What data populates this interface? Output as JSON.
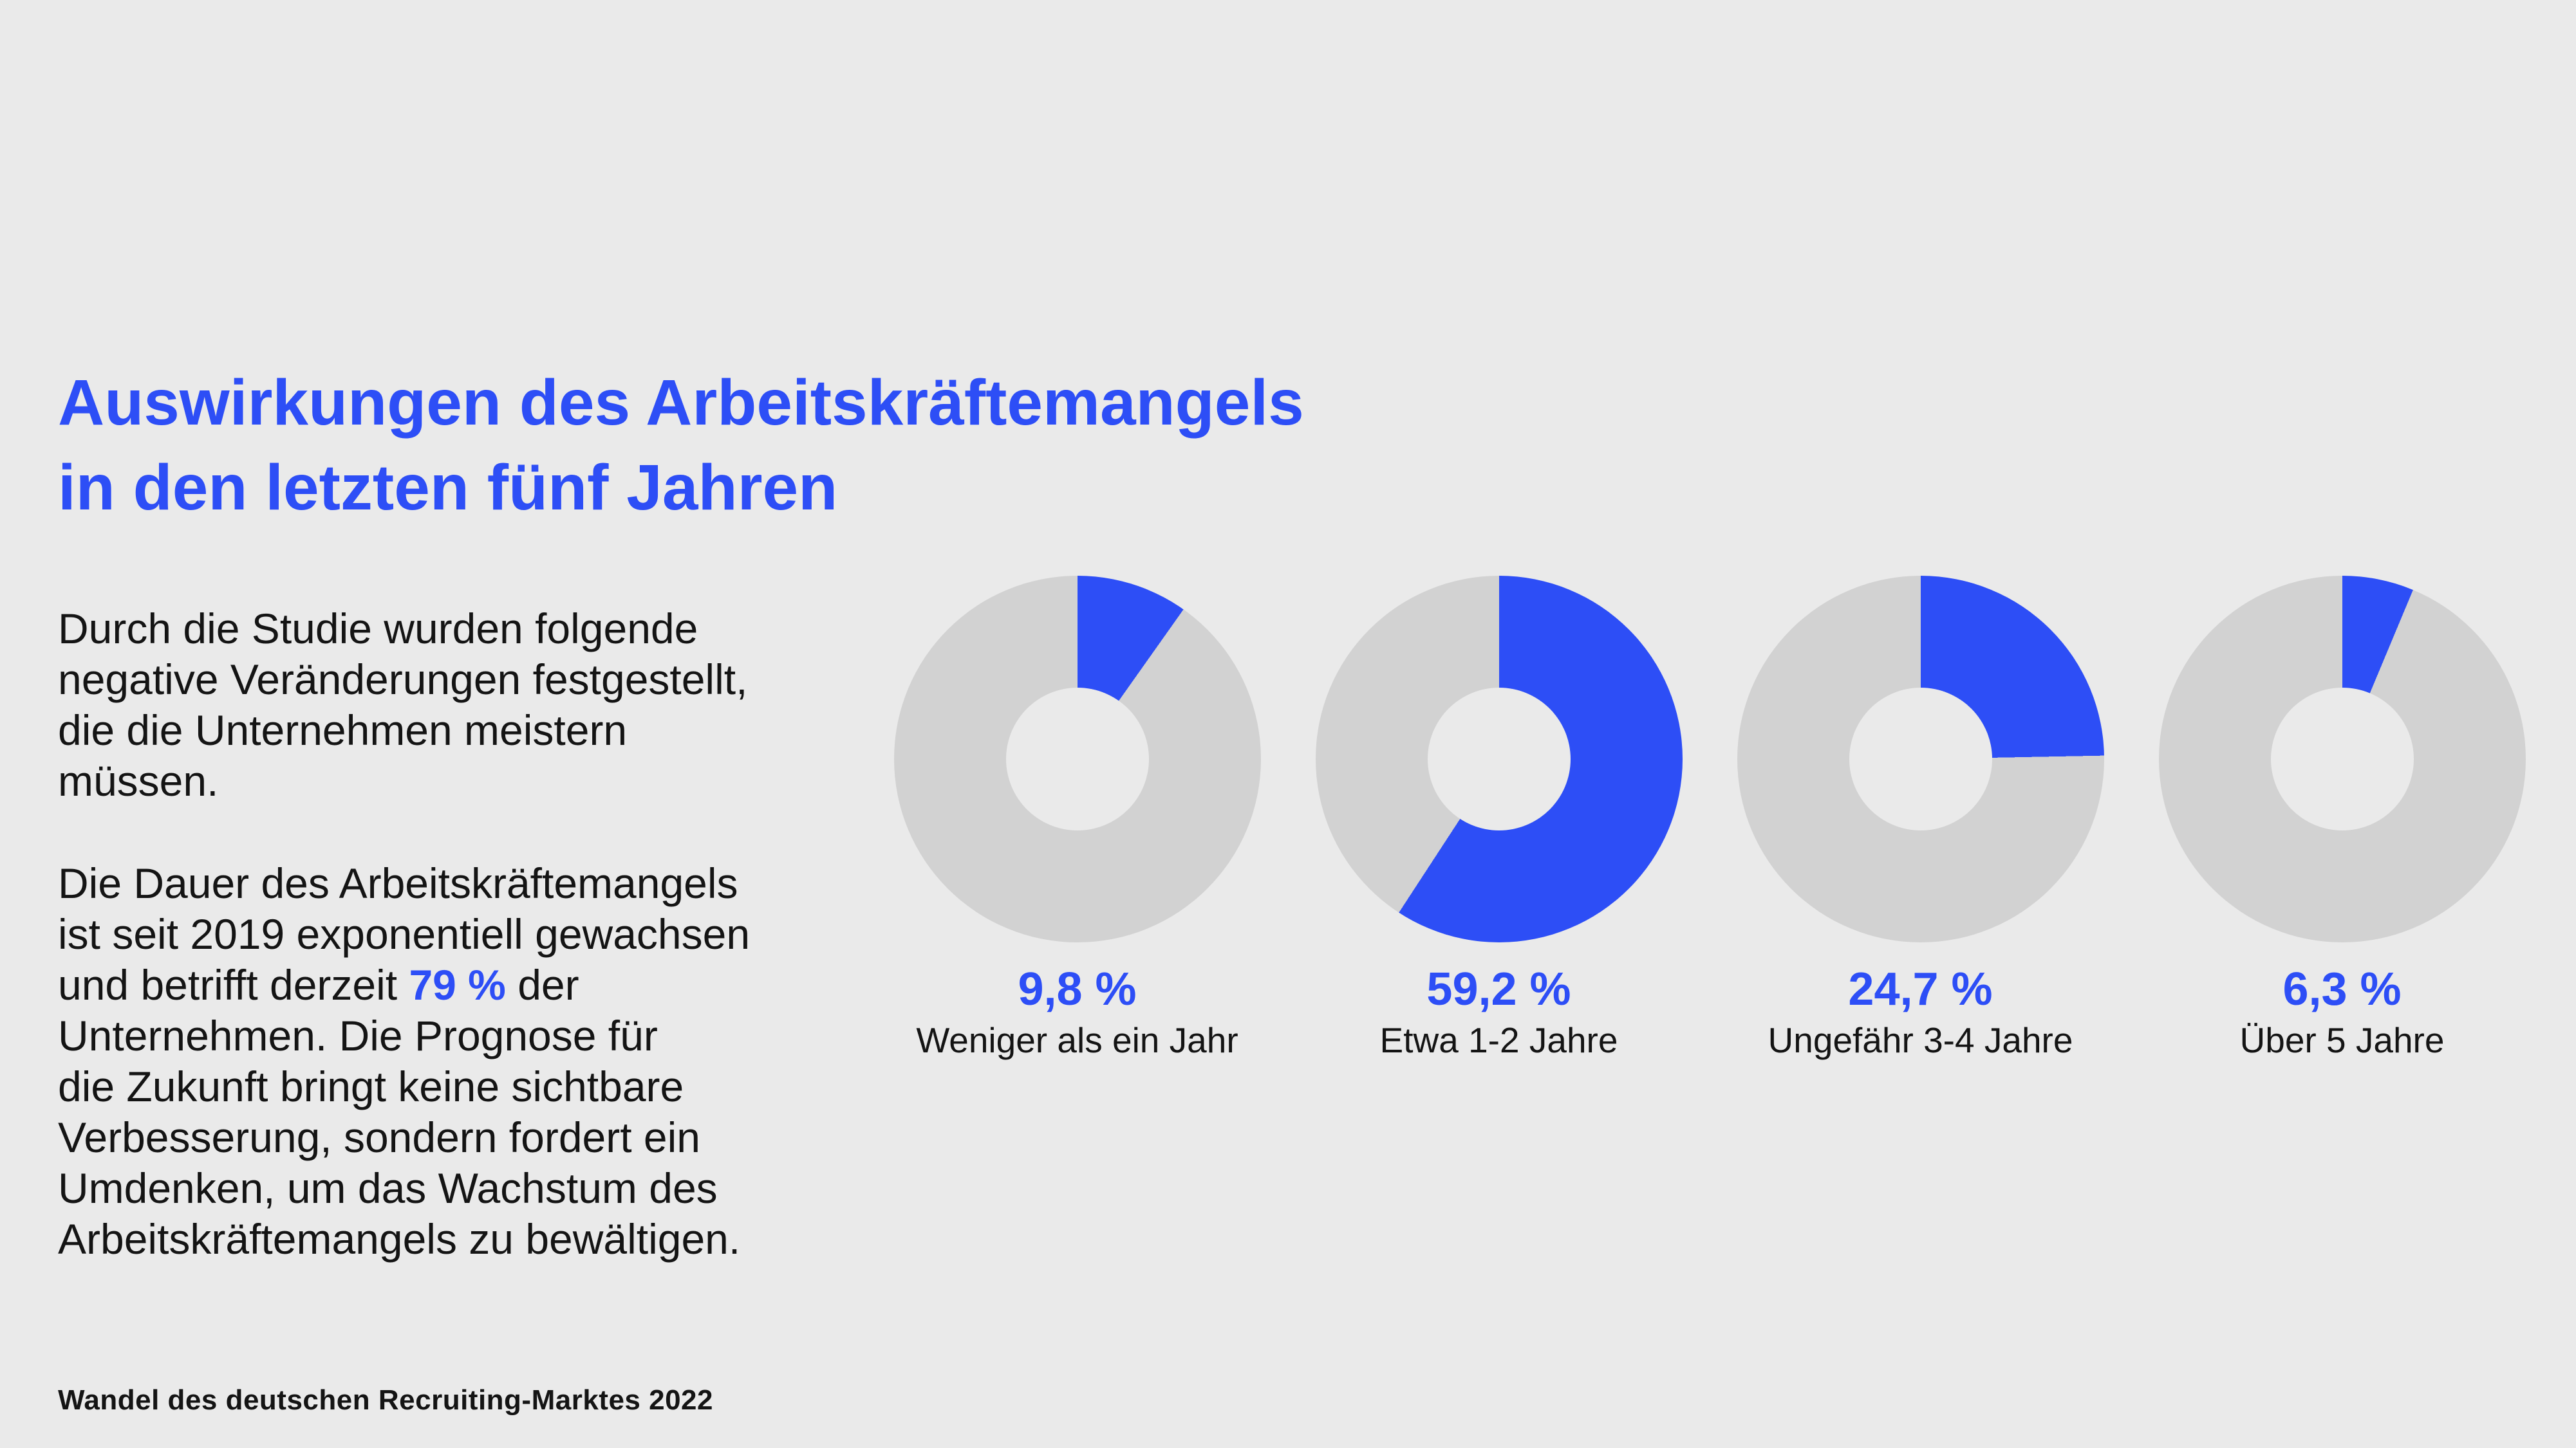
{
  "page": {
    "background_color": "#eaeaea",
    "accent_color": "#2d4ef6",
    "ring_rest_color": "#d2d2d2",
    "text_color": "#141414"
  },
  "header": {
    "title": "Auswirkungen des Arbeitskräftemangels\nin den letzten fünf Jahren"
  },
  "body": {
    "paragraph1": "Durch die Studie wurden folgende\nnegative Veränderungen festgestellt,\ndie die Unternehmen meistern\nmüssen.",
    "paragraph2_before": "Die Dauer des Arbeitskräftemangels\nist seit 2019 exponentiell gewachsen\nund betrifft derzeit ",
    "paragraph2_highlight": "79 %",
    "paragraph2_after": " der\nUnternehmen. Die Prognose für\ndie Zukunft bringt keine sichtbare\nVerbesserung, sondern fordert ein\nUmdenken, um das Wachstum des\nArbeitskräftemangels zu bewältigen."
  },
  "footer": {
    "source": "Wandel des deutschen Recruiting-Marktes 2022"
  },
  "chart_data": {
    "type": "pie",
    "variant": "donut",
    "title": "Auswirkungen des Arbeitskräftemangels in den letzten fünf Jahren",
    "categories": [
      "Weniger als ein Jahr",
      "Etwa 1-2 Jahre",
      "Ungefähr 3-4 Jahre",
      "Über 5 Jahre"
    ],
    "values": [
      9.8,
      59.2,
      24.7,
      6.3
    ],
    "value_labels": [
      "9,8 %",
      "59,2 %",
      "24,7 %",
      "6,3 %"
    ],
    "colors": {
      "active": "#2d4ef6",
      "rest": "#d2d2d2"
    },
    "start_angle_deg": 0,
    "direction": "clockwise",
    "legend_position": "below-each-donut"
  }
}
